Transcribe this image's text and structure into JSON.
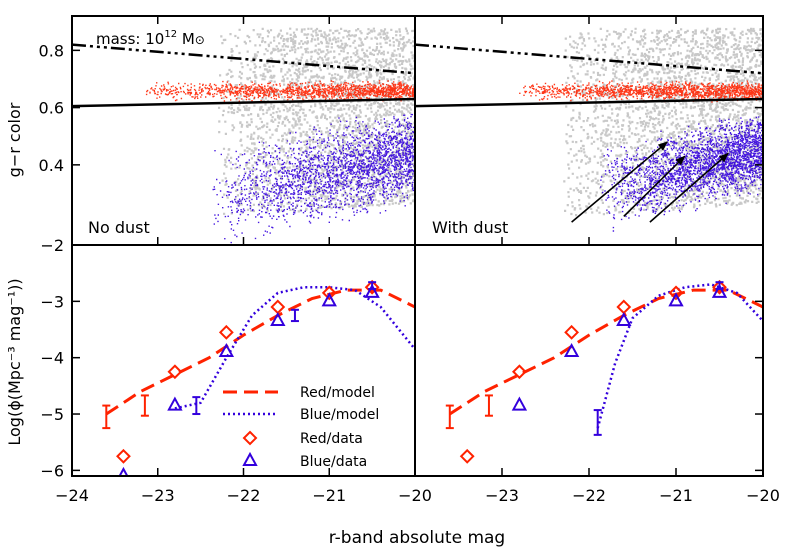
{
  "figure": {
    "xlabel": "r-band absolute mag",
    "xlim": [
      -24,
      -20
    ],
    "xticks": [
      -24,
      -23,
      -22,
      -21,
      -20
    ],
    "colors": {
      "red": "#ff2200",
      "blue": "#3300dd",
      "gray": "#9a9a9a",
      "black": "#000000"
    }
  },
  "chart_data": [
    {
      "type": "scatter",
      "panel": "top-left",
      "title": "No dust",
      "ylabel": "g−r color",
      "ylim": [
        0.12,
        0.92
      ],
      "yticks": [
        0.4,
        0.6,
        0.8
      ],
      "annotation": {
        "prefix": "mass: 10",
        "exponent": "12",
        "unit": " M",
        "unit_symbol": "⊙"
      },
      "reference_lines": [
        {
          "name": "dash-dot",
          "points": [
            [
              -24,
              0.82
            ],
            [
              -20,
              0.72
            ]
          ]
        },
        {
          "name": "solid",
          "points": [
            [
              -24,
              0.605
            ],
            [
              -20,
              0.63
            ]
          ]
        }
      ],
      "clouds": [
        {
          "name": "gray",
          "points": 2600,
          "x": [
            -22.3,
            -20.0
          ],
          "y": [
            0.22,
            0.88
          ]
        },
        {
          "name": "red",
          "points": 1400,
          "x": [
            -23.2,
            -20.0
          ],
          "y": [
            0.62,
            0.7
          ]
        },
        {
          "name": "blue",
          "points": 2200,
          "x": [
            -22.4,
            -20.0
          ],
          "y": [
            0.12,
            0.58
          ]
        }
      ]
    },
    {
      "type": "scatter",
      "panel": "top-right",
      "title": "With dust",
      "ylim": [
        0.12,
        0.92
      ],
      "arrows": [
        {
          "from": [
            -22.2,
            0.2
          ],
          "to": [
            -21.1,
            0.48
          ]
        },
        {
          "from": [
            -21.6,
            0.22
          ],
          "to": [
            -20.9,
            0.43
          ]
        },
        {
          "from": [
            -21.3,
            0.2
          ],
          "to": [
            -20.4,
            0.44
          ]
        }
      ],
      "clouds": [
        {
          "name": "gray",
          "points": 2600,
          "x": [
            -22.3,
            -20.0
          ],
          "y": [
            0.22,
            0.88
          ]
        },
        {
          "name": "red",
          "points": 1400,
          "x": [
            -22.9,
            -20.0
          ],
          "y": [
            0.62,
            0.7
          ]
        },
        {
          "name": "blue",
          "points": 2400,
          "x": [
            -21.9,
            -20.0
          ],
          "y": [
            0.18,
            0.57
          ]
        }
      ]
    },
    {
      "type": "line",
      "panel": "bottom-left",
      "ylabel": "Log(ϕ(Mpc⁻³ mag⁻¹))",
      "ylim": [
        -6.1,
        -2.0
      ],
      "yticks": [
        -6,
        -5,
        -4,
        -3,
        -2
      ],
      "legend": [
        "Red/model",
        "Blue/model",
        "Red/data",
        "Blue/data"
      ],
      "series": [
        {
          "name": "Red/model",
          "style": "dashed",
          "x": [
            -23.6,
            -23.2,
            -22.8,
            -22.4,
            -22.0,
            -21.6,
            -21.2,
            -20.8,
            -20.4,
            -20.0
          ],
          "y": [
            -5.0,
            -4.6,
            -4.3,
            -4.0,
            -3.6,
            -3.25,
            -2.95,
            -2.8,
            -2.8,
            -3.1
          ]
        },
        {
          "name": "Blue/model",
          "style": "dotted",
          "x": [
            -22.8,
            -22.5,
            -22.2,
            -21.9,
            -21.6,
            -21.3,
            -21.0,
            -20.7,
            -20.4,
            -20.0
          ],
          "y": [
            -4.9,
            -4.8,
            -4.0,
            -3.25,
            -2.85,
            -2.75,
            -2.75,
            -2.8,
            -3.1,
            -3.85
          ]
        },
        {
          "name": "Red/data",
          "marker": "diamond",
          "x": [
            -23.4,
            -22.8,
            -22.2,
            -21.6,
            -21.0,
            -20.5
          ],
          "y": [
            -5.75,
            -4.25,
            -3.55,
            -3.1,
            -2.85,
            -2.75
          ]
        },
        {
          "name": "Blue/data",
          "marker": "triangle",
          "x": [
            -23.4,
            -22.8,
            -22.2,
            -21.6,
            -21.0,
            -20.5
          ],
          "y": [
            -6.1,
            -4.85,
            -3.9,
            -3.35,
            -3.0,
            -2.85
          ]
        }
      ],
      "errorbars": [
        {
          "x": -23.6,
          "y": -5.05,
          "dy": 0.2
        },
        {
          "x": -23.15,
          "y": -4.85,
          "dy": 0.18
        },
        {
          "x": -22.55,
          "y": -4.85,
          "dy": 0.15
        },
        {
          "x": -21.4,
          "y": -3.25,
          "dy": 0.1
        },
        {
          "x": -20.5,
          "y": -2.72,
          "dy": 0.06
        }
      ]
    },
    {
      "type": "line",
      "panel": "bottom-right",
      "ylim": [
        -6.1,
        -2.0
      ],
      "series": [
        {
          "name": "Red/model",
          "style": "dashed",
          "x": [
            -23.6,
            -23.2,
            -22.8,
            -22.4,
            -22.0,
            -21.6,
            -21.2,
            -20.8,
            -20.4,
            -20.0
          ],
          "y": [
            -5.0,
            -4.6,
            -4.3,
            -4.0,
            -3.6,
            -3.25,
            -2.95,
            -2.8,
            -2.8,
            -3.1
          ]
        },
        {
          "name": "Blue/model",
          "style": "dotted",
          "x": [
            -21.9,
            -21.7,
            -21.5,
            -21.2,
            -20.9,
            -20.6,
            -20.3,
            -20.0
          ],
          "y": [
            -5.25,
            -4.1,
            -3.3,
            -2.9,
            -2.75,
            -2.7,
            -2.85,
            -3.35
          ]
        },
        {
          "name": "Red/data",
          "marker": "diamond",
          "x": [
            -23.4,
            -22.8,
            -22.2,
            -21.6,
            -21.0,
            -20.5
          ],
          "y": [
            -5.75,
            -4.25,
            -3.55,
            -3.1,
            -2.85,
            -2.75
          ]
        },
        {
          "name": "Blue/data",
          "marker": "triangle",
          "x": [
            -22.8,
            -22.2,
            -21.6,
            -21.0,
            -20.5
          ],
          "y": [
            -4.85,
            -3.9,
            -3.35,
            -3.0,
            -2.85
          ]
        }
      ],
      "errorbars": [
        {
          "x": -23.6,
          "y": -5.05,
          "dy": 0.2
        },
        {
          "x": -23.15,
          "y": -4.85,
          "dy": 0.18
        },
        {
          "x": -21.9,
          "y": -5.15,
          "dy": 0.22
        },
        {
          "x": -20.5,
          "y": -2.72,
          "dy": 0.06
        }
      ]
    }
  ]
}
